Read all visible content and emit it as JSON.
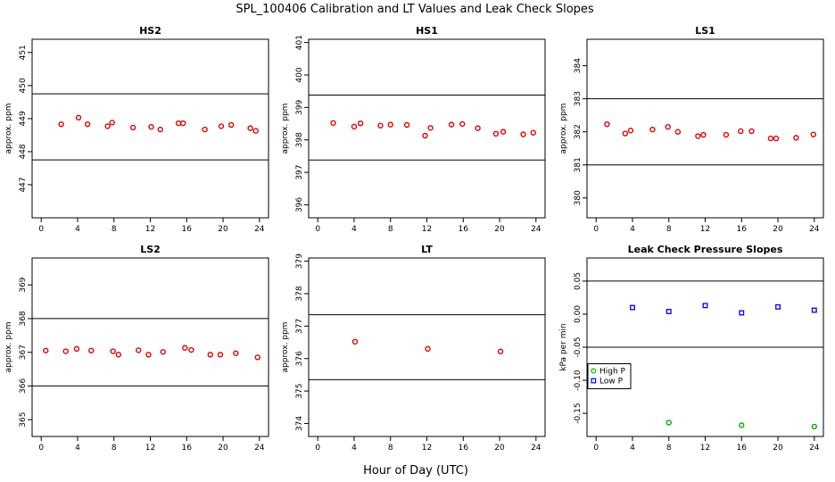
{
  "figure": {
    "title": "SPL_100406  Calibration and LT Values and Leak Check Slopes",
    "xlabel": "Hour of Day (UTC)"
  },
  "chart_data": [
    {
      "type": "scatter",
      "title": "HS2",
      "ylabel": "approx. ppm",
      "xlim": [
        -1,
        25
      ],
      "ylim": [
        446,
        451.4
      ],
      "xticks": [
        0,
        4,
        8,
        12,
        16,
        20,
        24
      ],
      "yticks": [
        447,
        448,
        449,
        450,
        451
      ],
      "hlines": [
        449.75,
        447.75
      ],
      "series": [
        {
          "color": "#e00000",
          "marker": "circle",
          "points": [
            [
              2.2,
              448.83
            ],
            [
              4.1,
              449.03
            ],
            [
              5.1,
              448.83
            ],
            [
              7.3,
              448.77
            ],
            [
              7.8,
              448.88
            ],
            [
              10.1,
              448.73
            ],
            [
              12.1,
              448.75
            ],
            [
              13.1,
              448.67
            ],
            [
              15.1,
              448.86
            ],
            [
              15.6,
              448.86
            ],
            [
              18.0,
              448.67
            ],
            [
              19.8,
              448.77
            ],
            [
              20.9,
              448.81
            ],
            [
              23.0,
              448.71
            ],
            [
              23.6,
              448.63
            ]
          ]
        }
      ]
    },
    {
      "type": "scatter",
      "title": "HS1",
      "ylabel": "approx. ppm",
      "xlim": [
        -1,
        25
      ],
      "ylim": [
        395.6,
        401.1
      ],
      "xticks": [
        0,
        4,
        8,
        12,
        16,
        20,
        24
      ],
      "yticks": [
        396,
        397,
        398,
        399,
        400,
        401
      ],
      "hlines": [
        399.38,
        397.38
      ],
      "series": [
        {
          "color": "#e00000",
          "marker": "circle",
          "points": [
            [
              1.7,
              398.52
            ],
            [
              4.0,
              398.41
            ],
            [
              4.7,
              398.51
            ],
            [
              6.9,
              398.44
            ],
            [
              8.0,
              398.47
            ],
            [
              9.8,
              398.46
            ],
            [
              11.8,
              398.13
            ],
            [
              12.4,
              398.37
            ],
            [
              14.7,
              398.47
            ],
            [
              15.9,
              398.49
            ],
            [
              17.6,
              398.36
            ],
            [
              19.6,
              398.19
            ],
            [
              20.4,
              398.25
            ],
            [
              22.6,
              398.17
            ],
            [
              23.7,
              398.22
            ]
          ]
        }
      ]
    },
    {
      "type": "scatter",
      "title": "LS1",
      "ylabel": "approx. ppm",
      "xlim": [
        -1,
        25
      ],
      "ylim": [
        379.4,
        384.8
      ],
      "xticks": [
        0,
        4,
        8,
        12,
        16,
        20,
        24
      ],
      "yticks": [
        380,
        381,
        382,
        383,
        384
      ],
      "hlines": [
        383.0,
        381.0
      ],
      "series": [
        {
          "color": "#e00000",
          "marker": "circle",
          "points": [
            [
              1.2,
              382.23
            ],
            [
              3.2,
              381.95
            ],
            [
              3.8,
              382.04
            ],
            [
              6.2,
              382.07
            ],
            [
              7.9,
              382.15
            ],
            [
              9.0,
              382.0
            ],
            [
              11.2,
              381.87
            ],
            [
              11.8,
              381.91
            ],
            [
              14.3,
              381.91
            ],
            [
              15.9,
              382.02
            ],
            [
              17.1,
              382.02
            ],
            [
              19.2,
              381.8
            ],
            [
              19.8,
              381.8
            ],
            [
              22.0,
              381.82
            ],
            [
              23.9,
              381.92
            ]
          ]
        }
      ]
    },
    {
      "type": "scatter",
      "title": "LS2",
      "ylabel": "approx. ppm",
      "xlim": [
        -1,
        25
      ],
      "ylim": [
        364.5,
        369.8
      ],
      "xticks": [
        0,
        4,
        8,
        12,
        16,
        20,
        24
      ],
      "yticks": [
        365,
        366,
        367,
        368,
        369
      ],
      "hlines": [
        368.0,
        366.0
      ],
      "series": [
        {
          "color": "#e00000",
          "marker": "circle",
          "points": [
            [
              0.5,
              367.05
            ],
            [
              2.7,
              367.03
            ],
            [
              3.9,
              367.1
            ],
            [
              5.5,
              367.05
            ],
            [
              7.9,
              367.03
            ],
            [
              8.5,
              366.93
            ],
            [
              10.7,
              367.06
            ],
            [
              11.8,
              366.93
            ],
            [
              13.4,
              367.01
            ],
            [
              15.8,
              367.13
            ],
            [
              16.5,
              367.07
            ],
            [
              18.6,
              366.93
            ],
            [
              19.7,
              366.93
            ],
            [
              21.4,
              366.97
            ],
            [
              23.8,
              366.85
            ]
          ]
        }
      ]
    },
    {
      "type": "scatter",
      "title": "LT",
      "ylabel": "approx. ppm",
      "xlim": [
        -1,
        25
      ],
      "ylim": [
        373.6,
        379.1
      ],
      "xticks": [
        0,
        4,
        8,
        12,
        16,
        20,
        24
      ],
      "yticks": [
        374,
        375,
        376,
        377,
        378,
        379
      ],
      "hlines": [
        377.35,
        375.35
      ],
      "series": [
        {
          "color": "#e00000",
          "marker": "circle",
          "points": [
            [
              4.1,
              376.52
            ],
            [
              12.1,
              376.3
            ],
            [
              20.1,
              376.22
            ]
          ]
        }
      ]
    },
    {
      "type": "scatter",
      "title": "Leak Check Pressure Slopes",
      "ylabel": "kPa per min",
      "xlim": [
        -1,
        25
      ],
      "ylim": [
        -0.185,
        0.085
      ],
      "xticks": [
        0,
        4,
        8,
        12,
        16,
        20,
        24
      ],
      "yticks": [
        -0.15,
        -0.1,
        -0.05,
        0.0,
        0.05
      ],
      "ytick_labels": [
        "-0.15",
        "-0.10",
        "-0.05",
        "0.00",
        "0.05"
      ],
      "hlines": [
        0.05,
        -0.05
      ],
      "legend": "left",
      "series": [
        {
          "name": "High P",
          "color": "#00b000",
          "marker": "circle",
          "points": [
            [
              8.0,
              -0.164
            ],
            [
              16.0,
              -0.168
            ],
            [
              24.0,
              -0.17
            ]
          ]
        },
        {
          "name": "Low P",
          "color": "#0000e0",
          "marker": "square",
          "points": [
            [
              4.0,
              0.01
            ],
            [
              8.0,
              0.004
            ],
            [
              12.0,
              0.013
            ],
            [
              16.0,
              0.002
            ],
            [
              20.0,
              0.011
            ],
            [
              24.0,
              0.006
            ]
          ]
        }
      ]
    }
  ]
}
